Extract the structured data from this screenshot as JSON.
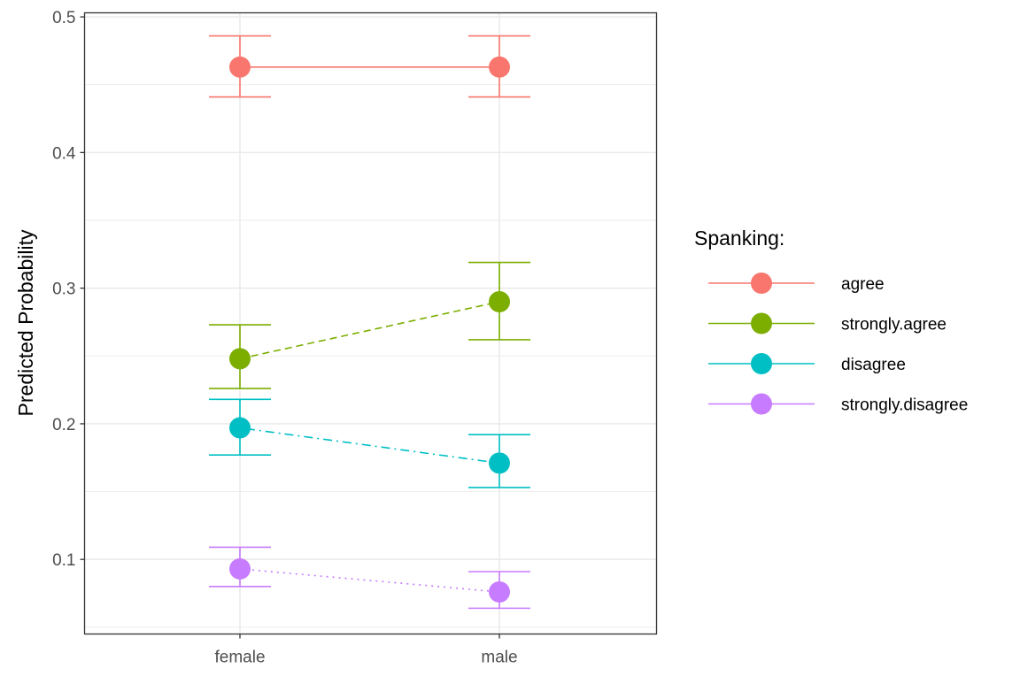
{
  "chart_data": {
    "type": "line",
    "xlabel": "",
    "ylabel": "Predicted Probability",
    "categories": [
      "female",
      "male"
    ],
    "ylim": [
      0.045,
      0.503
    ],
    "y_ticks": [
      "0.1",
      "0.2",
      "0.3",
      "0.4",
      "0.5"
    ],
    "y_tick_values": [
      0.1,
      0.2,
      0.3,
      0.4,
      0.5
    ],
    "grid": true,
    "legend": {
      "title": "Spanking:",
      "position": "right"
    },
    "series": [
      {
        "name": "agree",
        "color": "#F8766D",
        "linetype": "solid",
        "values": [
          0.463,
          0.463
        ],
        "lower": [
          0.441,
          0.441
        ],
        "upper": [
          0.486,
          0.486
        ]
      },
      {
        "name": "strongly.agree",
        "color": "#7CAE00",
        "linetype": "dashed",
        "values": [
          0.248,
          0.29
        ],
        "lower": [
          0.226,
          0.262
        ],
        "upper": [
          0.273,
          0.319
        ]
      },
      {
        "name": "disagree",
        "color": "#00BFC4",
        "linetype": "dotdash",
        "values": [
          0.197,
          0.171
        ],
        "lower": [
          0.177,
          0.153
        ],
        "upper": [
          0.218,
          0.192
        ]
      },
      {
        "name": "strongly.disagree",
        "color": "#C77CFF",
        "linetype": "dotted",
        "values": [
          0.093,
          0.076
        ],
        "lower": [
          0.08,
          0.064
        ],
        "upper": [
          0.109,
          0.091
        ]
      }
    ]
  }
}
